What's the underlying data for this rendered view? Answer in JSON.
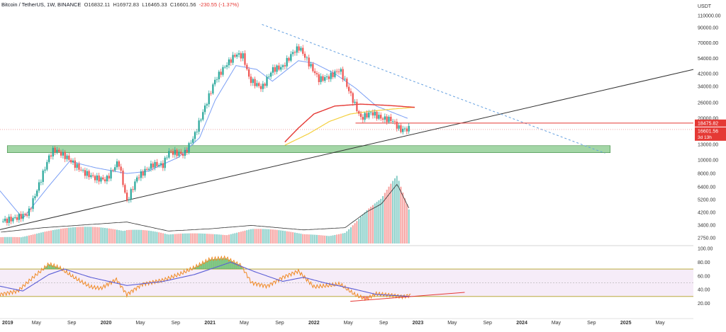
{
  "header": {
    "symbol": "Bitcoin / TetherUS, 1W, BINANCE",
    "open": "O16832.11",
    "high": "H16972.83",
    "low": "L16465.33",
    "close": "C16601.56",
    "change": "-230.55 (-1.37%)"
  },
  "price_axis": {
    "currency": "USDT",
    "ticks": [
      {
        "value": 110000,
        "label": "110000.00"
      },
      {
        "value": 90000,
        "label": "90000.00"
      },
      {
        "value": 70000,
        "label": "70000.00"
      },
      {
        "value": 54000,
        "label": "54000.00"
      },
      {
        "value": 42000,
        "label": "42000.00"
      },
      {
        "value": 34000,
        "label": "34000.00"
      },
      {
        "value": 26000,
        "label": "26000.00"
      },
      {
        "value": 20000,
        "label": "20000.00"
      },
      {
        "value": 13000,
        "label": "13000.00"
      },
      {
        "value": 10000,
        "label": "10000.00"
      },
      {
        "value": 8000,
        "label": "8000.00"
      },
      {
        "value": 6400,
        "label": "6400.00"
      },
      {
        "value": 5200,
        "label": "5200.00"
      },
      {
        "value": 4200,
        "label": "4200.00"
      },
      {
        "value": 3400,
        "label": "3400.00"
      },
      {
        "value": 2750,
        "label": "2750.00"
      }
    ],
    "price_tags": [
      {
        "value": 18475.82,
        "label": "18475.82"
      },
      {
        "value": 16601.56,
        "label": "16601.56"
      }
    ],
    "countdown": "3d 13h",
    "tag_color": "#e53935"
  },
  "rsi_axis": {
    "ticks": [
      {
        "value": 100,
        "label": "100.00"
      },
      {
        "value": 80,
        "label": "80.00"
      },
      {
        "value": 60,
        "label": "60.00"
      },
      {
        "value": 40,
        "label": "40.00"
      },
      {
        "value": 20,
        "label": "20.00"
      }
    ]
  },
  "time_axis": {
    "labels": [
      {
        "t": 2019.0,
        "label": "2019",
        "bold": true
      },
      {
        "t": 2019.33,
        "label": "May",
        "bold": false
      },
      {
        "t": 2019.67,
        "label": "Sep",
        "bold": false
      },
      {
        "t": 2020.0,
        "label": "2020",
        "bold": true
      },
      {
        "t": 2020.33,
        "label": "May",
        "bold": false
      },
      {
        "t": 2020.67,
        "label": "Sep",
        "bold": false
      },
      {
        "t": 2021.0,
        "label": "2021",
        "bold": true
      },
      {
        "t": 2021.33,
        "label": "May",
        "bold": false
      },
      {
        "t": 2021.67,
        "label": "Sep",
        "bold": false
      },
      {
        "t": 2022.0,
        "label": "2022",
        "bold": true
      },
      {
        "t": 2022.33,
        "label": "May",
        "bold": false
      },
      {
        "t": 2022.67,
        "label": "Sep",
        "bold": false
      },
      {
        "t": 2023.0,
        "label": "2023",
        "bold": true
      },
      {
        "t": 2023.33,
        "label": "May",
        "bold": false
      },
      {
        "t": 2023.67,
        "label": "Sep",
        "bold": false
      },
      {
        "t": 2024.0,
        "label": "2024",
        "bold": true
      },
      {
        "t": 2024.33,
        "label": "May",
        "bold": false
      },
      {
        "t": 2024.67,
        "label": "Sep",
        "bold": false
      },
      {
        "t": 2025.0,
        "label": "2025",
        "bold": true
      },
      {
        "t": 2025.33,
        "label": "May",
        "bold": false
      }
    ]
  },
  "colors": {
    "up": "#26a69a",
    "down": "#ef5350",
    "sma_short": "#7b9ff5",
    "sma_200": "#e53935",
    "sma_mid": "#f4d03f",
    "rsi_line": "#f08a24",
    "rsi_ma": "#5c5fd6",
    "support_zone": "#66bb6a",
    "trendline": "#333333",
    "down_trendline": "#64a0e0"
  },
  "chart_data": {
    "type": "candlestick",
    "symbol": "Bitcoin / TetherUS",
    "interval": "1W",
    "exchange": "BINANCE",
    "price_scale": "log",
    "ylim": [
      2600,
      120000
    ],
    "xlim": [
      2018.98,
      2025.65
    ],
    "price_path": [
      {
        "t": 2018.98,
        "p": 3600
      },
      {
        "t": 2019.12,
        "p": 3800
      },
      {
        "t": 2019.25,
        "p": 4100
      },
      {
        "t": 2019.35,
        "p": 6500
      },
      {
        "t": 2019.45,
        "p": 10500
      },
      {
        "t": 2019.5,
        "p": 12000
      },
      {
        "t": 2019.62,
        "p": 10500
      },
      {
        "t": 2019.78,
        "p": 8200
      },
      {
        "t": 2019.9,
        "p": 7400
      },
      {
        "t": 2020.0,
        "p": 7200
      },
      {
        "t": 2020.12,
        "p": 9800
      },
      {
        "t": 2020.2,
        "p": 5000
      },
      {
        "t": 2020.3,
        "p": 7500
      },
      {
        "t": 2020.45,
        "p": 9300
      },
      {
        "t": 2020.55,
        "p": 9200
      },
      {
        "t": 2020.6,
        "p": 11500
      },
      {
        "t": 2020.75,
        "p": 11000
      },
      {
        "t": 2020.85,
        "p": 15000
      },
      {
        "t": 2020.95,
        "p": 24000
      },
      {
        "t": 2021.05,
        "p": 38000
      },
      {
        "t": 2021.15,
        "p": 48000
      },
      {
        "t": 2021.25,
        "p": 58000
      },
      {
        "t": 2021.32,
        "p": 56000
      },
      {
        "t": 2021.38,
        "p": 38000
      },
      {
        "t": 2021.5,
        "p": 33000
      },
      {
        "t": 2021.6,
        "p": 45000
      },
      {
        "t": 2021.7,
        "p": 47000
      },
      {
        "t": 2021.8,
        "p": 60000
      },
      {
        "t": 2021.86,
        "p": 65000
      },
      {
        "t": 2021.95,
        "p": 50000
      },
      {
        "t": 2022.05,
        "p": 38000
      },
      {
        "t": 2022.15,
        "p": 40000
      },
      {
        "t": 2022.25,
        "p": 45000
      },
      {
        "t": 2022.35,
        "p": 30000
      },
      {
        "t": 2022.45,
        "p": 20000
      },
      {
        "t": 2022.55,
        "p": 22000
      },
      {
        "t": 2022.65,
        "p": 20000
      },
      {
        "t": 2022.75,
        "p": 19500
      },
      {
        "t": 2022.83,
        "p": 16500
      },
      {
        "t": 2022.92,
        "p": 16800
      }
    ],
    "sma_short_path": [
      {
        "t": 2018.98,
        "p": 6000
      },
      {
        "t": 2019.2,
        "p": 3800
      },
      {
        "t": 2019.45,
        "p": 6500
      },
      {
        "t": 2019.65,
        "p": 9800
      },
      {
        "t": 2019.9,
        "p": 8800
      },
      {
        "t": 2020.2,
        "p": 8000
      },
      {
        "t": 2020.4,
        "p": 8300
      },
      {
        "t": 2020.7,
        "p": 10500
      },
      {
        "t": 2020.9,
        "p": 14500
      },
      {
        "t": 2021.05,
        "p": 27000
      },
      {
        "t": 2021.25,
        "p": 48000
      },
      {
        "t": 2021.45,
        "p": 45000
      },
      {
        "t": 2021.6,
        "p": 37000
      },
      {
        "t": 2021.85,
        "p": 52000
      },
      {
        "t": 2022.0,
        "p": 50000
      },
      {
        "t": 2022.2,
        "p": 42000
      },
      {
        "t": 2022.4,
        "p": 33000
      },
      {
        "t": 2022.6,
        "p": 24500
      },
      {
        "t": 2022.9,
        "p": 20000
      }
    ],
    "sma_200_path": [
      {
        "t": 2021.72,
        "p": 13500
      },
      {
        "t": 2021.85,
        "p": 17000
      },
      {
        "t": 2022.0,
        "p": 21500
      },
      {
        "t": 2022.2,
        "p": 24500
      },
      {
        "t": 2022.45,
        "p": 25300
      },
      {
        "t": 2022.7,
        "p": 24800
      },
      {
        "t": 2022.97,
        "p": 24000
      }
    ],
    "sma_mid_path": [
      {
        "t": 2021.72,
        "p": 12800
      },
      {
        "t": 2021.95,
        "p": 15500
      },
      {
        "t": 2022.15,
        "p": 19000
      },
      {
        "t": 2022.35,
        "p": 21500
      },
      {
        "t": 2022.55,
        "p": 22500
      },
      {
        "t": 2022.75,
        "p": 23300
      },
      {
        "t": 2022.97,
        "p": 24000
      }
    ],
    "support_zone": {
      "t_from": 2019.05,
      "t_to": 2024.85,
      "p_low": 11300,
      "p_high": 12700
    },
    "ascending_trendline": {
      "t1": 2018.98,
      "p1": 3150,
      "t2": 2025.65,
      "p2": 45000
    },
    "descending_trendline": {
      "t1": 2021.5,
      "p1": 95000,
      "t2": 2024.8,
      "p2": 11200
    },
    "resistance_line": {
      "t_from": 2022.4,
      "t_to": 2025.65,
      "p": 18475.82
    },
    "volume_path": [
      {
        "t": 2018.98,
        "v": 0.1
      },
      {
        "t": 2019.4,
        "v": 0.18
      },
      {
        "t": 2020.2,
        "v": 0.28
      },
      {
        "t": 2020.6,
        "v": 0.12
      },
      {
        "t": 2021.0,
        "v": 0.16
      },
      {
        "t": 2021.4,
        "v": 0.22
      },
      {
        "t": 2021.9,
        "v": 0.14
      },
      {
        "t": 2022.3,
        "v": 0.18
      },
      {
        "t": 2022.5,
        "v": 0.45
      },
      {
        "t": 2022.65,
        "v": 0.6
      },
      {
        "t": 2022.8,
        "v": 0.95
      },
      {
        "t": 2022.92,
        "v": 0.5
      }
    ],
    "rsi": {
      "ylim": [
        0,
        100
      ],
      "bands": {
        "upper": 70,
        "lower": 30
      },
      "path": [
        {
          "t": 2018.98,
          "v": 33
        },
        {
          "t": 2019.15,
          "v": 38
        },
        {
          "t": 2019.3,
          "v": 58
        },
        {
          "t": 2019.45,
          "v": 77
        },
        {
          "t": 2019.55,
          "v": 72
        },
        {
          "t": 2019.7,
          "v": 57
        },
        {
          "t": 2019.85,
          "v": 44
        },
        {
          "t": 2019.95,
          "v": 42
        },
        {
          "t": 2020.1,
          "v": 55
        },
        {
          "t": 2020.2,
          "v": 33
        },
        {
          "t": 2020.35,
          "v": 48
        },
        {
          "t": 2020.55,
          "v": 54
        },
        {
          "t": 2020.7,
          "v": 62
        },
        {
          "t": 2020.85,
          "v": 72
        },
        {
          "t": 2021.0,
          "v": 84
        },
        {
          "t": 2021.15,
          "v": 86
        },
        {
          "t": 2021.3,
          "v": 75
        },
        {
          "t": 2021.4,
          "v": 50
        },
        {
          "t": 2021.55,
          "v": 45
        },
        {
          "t": 2021.7,
          "v": 58
        },
        {
          "t": 2021.85,
          "v": 67
        },
        {
          "t": 2022.0,
          "v": 44
        },
        {
          "t": 2022.15,
          "v": 46
        },
        {
          "t": 2022.25,
          "v": 48
        },
        {
          "t": 2022.4,
          "v": 32
        },
        {
          "t": 2022.5,
          "v": 26
        },
        {
          "t": 2022.6,
          "v": 34
        },
        {
          "t": 2022.75,
          "v": 32
        },
        {
          "t": 2022.85,
          "v": 30
        },
        {
          "t": 2022.93,
          "v": 32
        }
      ],
      "ma_path": [
        {
          "t": 2018.98,
          "v": 45
        },
        {
          "t": 2019.2,
          "v": 38
        },
        {
          "t": 2019.45,
          "v": 62
        },
        {
          "t": 2019.6,
          "v": 70
        },
        {
          "t": 2019.85,
          "v": 58
        },
        {
          "t": 2020.2,
          "v": 46
        },
        {
          "t": 2020.55,
          "v": 52
        },
        {
          "t": 2020.85,
          "v": 62
        },
        {
          "t": 2021.2,
          "v": 80
        },
        {
          "t": 2021.45,
          "v": 65
        },
        {
          "t": 2021.7,
          "v": 52
        },
        {
          "t": 2021.9,
          "v": 58
        },
        {
          "t": 2022.1,
          "v": 50
        },
        {
          "t": 2022.35,
          "v": 42
        },
        {
          "t": 2022.6,
          "v": 33
        },
        {
          "t": 2022.93,
          "v": 30
        }
      ],
      "rising_trendline": {
        "t1": 2022.35,
        "v1": 23,
        "t2": 2023.45,
        "v2": 36
      }
    }
  }
}
